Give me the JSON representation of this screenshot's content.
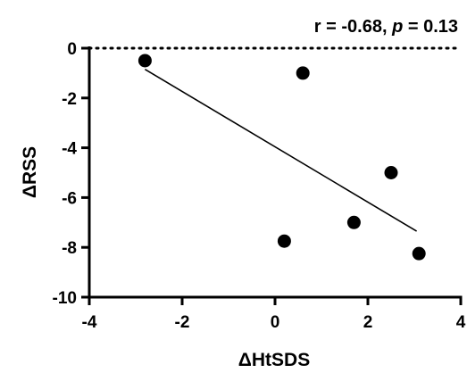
{
  "chart_data": {
    "type": "scatter",
    "title": "",
    "annotation": {
      "prefix": "r = -0.68, ",
      "p_symbol": "p",
      "suffix": " = 0.13"
    },
    "xlabel": "ΔHtSDS",
    "ylabel": "ΔRSS",
    "xlim": [
      -4,
      4
    ],
    "ylim": [
      -10,
      0
    ],
    "xticks": [
      -4,
      -2,
      0,
      2,
      4
    ],
    "yticks": [
      0,
      -2,
      -4,
      -6,
      -8,
      -10
    ],
    "xtick_labels": [
      "-4",
      "-2",
      "0",
      "2",
      "4"
    ],
    "ytick_labels": [
      "0",
      "-2",
      "-4",
      "-6",
      "-8",
      "-10"
    ],
    "points": [
      {
        "x": -2.8,
        "y": -0.5
      },
      {
        "x": 0.6,
        "y": -1.0
      },
      {
        "x": 2.5,
        "y": -5.0
      },
      {
        "x": 1.7,
        "y": -7.0
      },
      {
        "x": 0.2,
        "y": -7.75
      },
      {
        "x": 3.1,
        "y": -8.25
      }
    ],
    "regression_line": {
      "x": [
        -2.8,
        3.05
      ],
      "y": [
        -0.85,
        -7.35
      ]
    },
    "reference_line": {
      "y": 0,
      "style": "dotted"
    },
    "grid": false,
    "legend": "none"
  }
}
